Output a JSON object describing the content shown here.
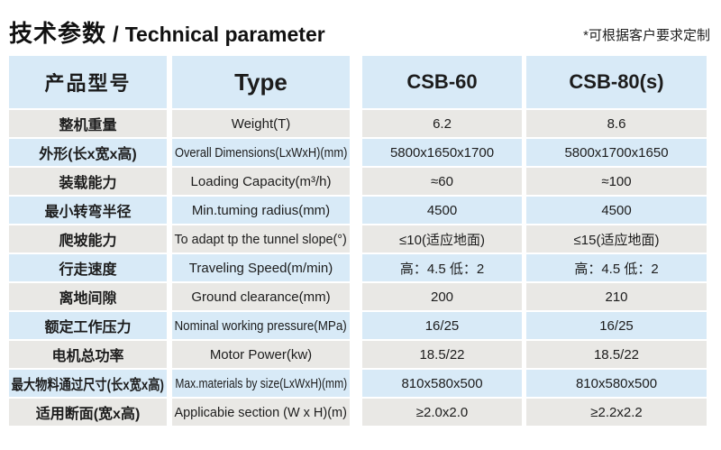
{
  "header": {
    "title_zh": "技术参数",
    "title_divider": "/",
    "title_en": "Technical parameter",
    "note": "*可根据客户要求定制"
  },
  "table": {
    "columns": {
      "product_model_zh": "产品型号",
      "type_label": "Type",
      "model_1": "CSB-60",
      "model_2": "CSB-80(s)"
    },
    "rows": [
      {
        "zh": "整机重量",
        "en": "Weight(T)",
        "csb60": "6.2",
        "csb80": "8.6"
      },
      {
        "zh": "外形(长x宽x高)",
        "en": "Overall Dimensions(LxWxH)(mm)",
        "csb60": "5800x1650x1700",
        "csb80": "5800x1700x1650"
      },
      {
        "zh": "装载能力",
        "en": "Loading Capacity(m³/h)",
        "csb60": "≈60",
        "csb80": "≈100"
      },
      {
        "zh": "最小转弯半径",
        "en": "Min.tuming radius(mm)",
        "csb60": "4500",
        "csb80": "4500"
      },
      {
        "zh": "爬坡能力",
        "en": "To adapt tp the tunnel slope(°)",
        "csb60": "≤10(适应地面)",
        "csb80": "≤15(适应地面)"
      },
      {
        "zh": "行走速度",
        "en": "Traveling Speed(m/min)",
        "csb60": "高：4.5 低：2",
        "csb80": "高：4.5 低：2"
      },
      {
        "zh": "离地间隙",
        "en": "Ground clearance(mm)",
        "csb60": "200",
        "csb80": "210"
      },
      {
        "zh": "额定工作压力",
        "en": "Nominal working pressure(MPa)",
        "csb60": "16/25",
        "csb80": "16/25"
      },
      {
        "zh": "电机总功率",
        "en": "Motor Power(kw)",
        "csb60": "18.5/22",
        "csb80": "18.5/22"
      },
      {
        "zh": "最大物料通过尺寸(长x宽x高)",
        "en": "Max.materials by size(LxWxH)(mm)",
        "csb60": "810x580x500",
        "csb80": "810x580x500"
      },
      {
        "zh": "适用断面(宽x高)",
        "en": "Applicabie section (W x H)(m)",
        "csb60": "≥2.0x2.0",
        "csb80": "≥2.2x2.2"
      }
    ]
  },
  "colors": {
    "row_blue": "#d8eaf7",
    "row_gray": "#e9e8e5",
    "text": "#1c1c1c"
  }
}
